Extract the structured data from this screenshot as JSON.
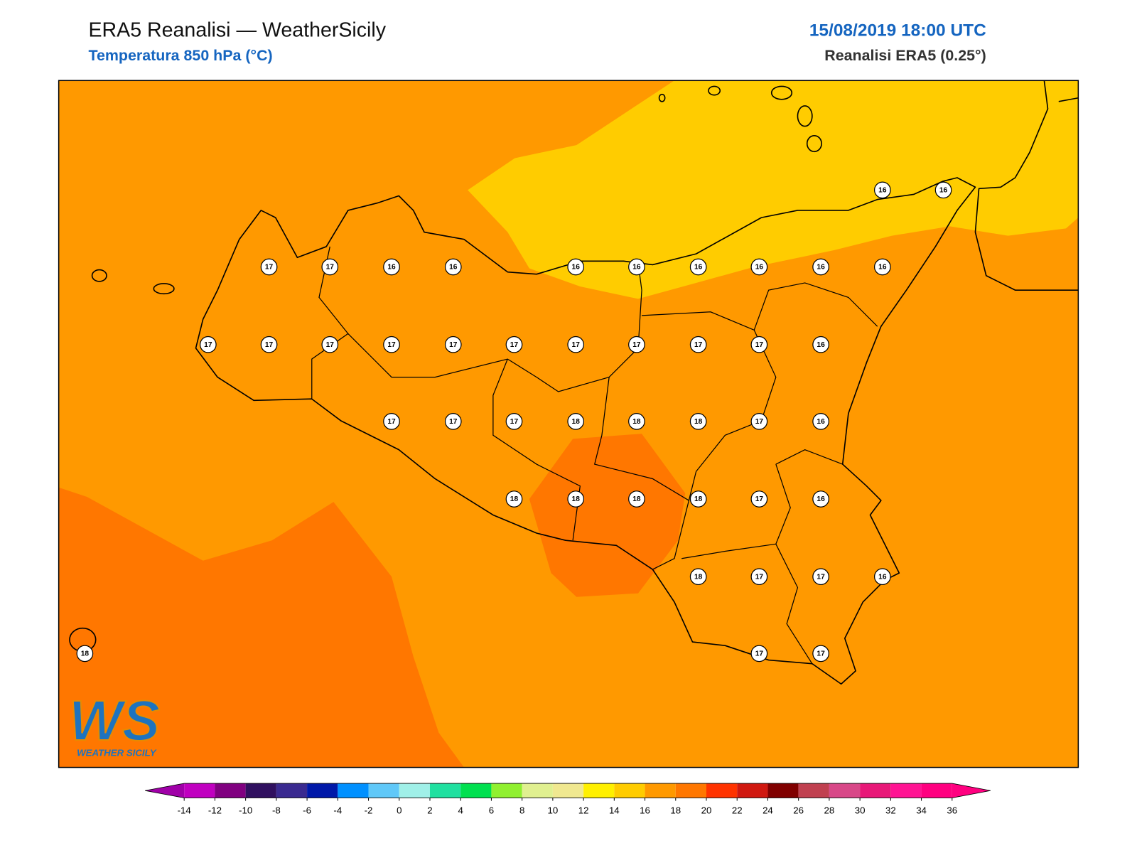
{
  "header": {
    "title": "ERA5 Reanalisi — WeatherSicily",
    "subtitle": "Temperatura 850 hPa (°C)",
    "datetime": "15/08/2019 18:00 UTC",
    "source": "Reanalisi ERA5 (0.25°)"
  },
  "map": {
    "points": [
      {
        "label": "16"
      },
      {
        "label": "16"
      },
      {
        "label": "17"
      },
      {
        "label": "17"
      },
      {
        "label": "16"
      },
      {
        "label": "16"
      },
      {
        "label": "16"
      },
      {
        "label": "16"
      },
      {
        "label": "16"
      },
      {
        "label": "16"
      },
      {
        "label": "16"
      },
      {
        "label": "16"
      },
      {
        "label": "17"
      },
      {
        "label": "17"
      },
      {
        "label": "17"
      },
      {
        "label": "17"
      },
      {
        "label": "17"
      },
      {
        "label": "17"
      },
      {
        "label": "17"
      },
      {
        "label": "17"
      },
      {
        "label": "17"
      },
      {
        "label": "17"
      },
      {
        "label": "16"
      },
      {
        "label": "17"
      },
      {
        "label": "17"
      },
      {
        "label": "17"
      },
      {
        "label": "18"
      },
      {
        "label": "18"
      },
      {
        "label": "18"
      },
      {
        "label": "17"
      },
      {
        "label": "16"
      },
      {
        "label": "18"
      },
      {
        "label": "18"
      },
      {
        "label": "18"
      },
      {
        "label": "18"
      },
      {
        "label": "17"
      },
      {
        "label": "16"
      },
      {
        "label": "18"
      },
      {
        "label": "17"
      },
      {
        "label": "17"
      },
      {
        "label": "16"
      },
      {
        "label": "18"
      },
      {
        "label": "17"
      },
      {
        "label": "17"
      }
    ]
  },
  "colorbar": {
    "ticks": [
      -14,
      -12,
      -10,
      -8,
      -6,
      -4,
      -2,
      0,
      2,
      4,
      6,
      8,
      10,
      12,
      14,
      16,
      18,
      20,
      22,
      24,
      26,
      28,
      30,
      32,
      34,
      36
    ],
    "under_color": "#a000a8",
    "over_color": "#ff0080",
    "colors": [
      "#c000c0",
      "#800080",
      "#30105f",
      "#3a2a90",
      "#0018a8",
      "#0090ff",
      "#60c8f8",
      "#a0f0e8",
      "#20e0a0",
      "#00e050",
      "#90f030",
      "#e0f090",
      "#f0e890",
      "#fff000",
      "#ffcc00",
      "#ff9900",
      "#ff7700",
      "#ff3300",
      "#d01810",
      "#800000",
      "#c04050",
      "#d84888",
      "#e81878",
      "#ff1493",
      "#ff0080"
    ]
  },
  "logo": {
    "text": "WS",
    "subtitle": "WEATHER SICILY"
  }
}
